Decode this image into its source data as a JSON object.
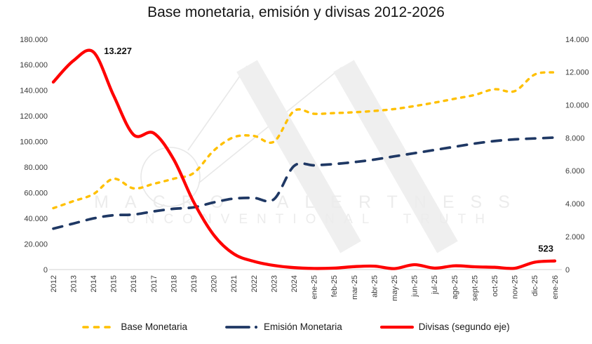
{
  "chart_data": {
    "type": "line",
    "title": "Base monetaria, emisión y divisas 2012-2026",
    "categories": [
      "2012",
      "2013",
      "2014",
      "2015",
      "2016",
      "2017",
      "2018",
      "2019",
      "2020",
      "2021",
      "2022",
      "2023",
      "2024",
      "ene-25",
      "feb-25",
      "mar-25",
      "abr-25",
      "may-25",
      "jun-25",
      "jul-25",
      "ago-25",
      "sept-25",
      "oct-25",
      "nov-25",
      "dic-25",
      "ene-26"
    ],
    "series": [
      {
        "name": "Base Monetaria",
        "axis": "left",
        "color": "#FFC000",
        "style": "dashed-short",
        "values": [
          48000,
          53500,
          59000,
          71000,
          63500,
          67000,
          71000,
          75500,
          93000,
          103500,
          104500,
          100000,
          124000,
          121800,
          122300,
          123000,
          124000,
          125500,
          127800,
          130500,
          133500,
          136500,
          141000,
          139500,
          152500,
          154200
        ]
      },
      {
        "name": "Emisión Monetaria",
        "axis": "left",
        "color": "#1F3864",
        "style": "dashed-long",
        "values": [
          32000,
          36000,
          40000,
          42500,
          43000,
          45500,
          47500,
          48700,
          52500,
          55500,
          56000,
          55000,
          81000,
          81500,
          82500,
          84000,
          86000,
          88500,
          91000,
          93500,
          96000,
          98500,
          100500,
          101800,
          102500,
          103200
        ]
      },
      {
        "name": "Divisas (segundo eje)",
        "axis": "right",
        "color": "#FF0000",
        "style": "solid",
        "values": [
          11400,
          12700,
          13227,
          10600,
          8200,
          8300,
          6700,
          4100,
          2100,
          950,
          500,
          250,
          120,
          70,
          90,
          180,
          210,
          60,
          300,
          90,
          230,
          170,
          140,
          80,
          450,
          523
        ]
      }
    ],
    "left_axis": {
      "min": 0,
      "max": 180000,
      "tick_labels": [
        "0",
        "20.000",
        "40.000",
        "60.000",
        "80.000",
        "100.000",
        "120.000",
        "140.000",
        "160.000",
        "180.000"
      ]
    },
    "right_axis": {
      "min": 0,
      "max": 14000,
      "tick_labels": [
        "0",
        "2.000",
        "4.000",
        "6.000",
        "8.000",
        "10.000",
        "12.000",
        "14.000"
      ]
    },
    "annotations": [
      {
        "text": "13.227",
        "series": "Divisas (segundo eje)",
        "index": 2
      },
      {
        "text": "523",
        "series": "Divisas (segundo eje)",
        "index": 25
      }
    ],
    "legend_position": "bottom",
    "grid": false,
    "axis_line_color": "#D9D9D9"
  },
  "watermark": {
    "line1": "MACRO ALERTNESS",
    "line2": "UNCONVENTIONAL TRUTH"
  }
}
